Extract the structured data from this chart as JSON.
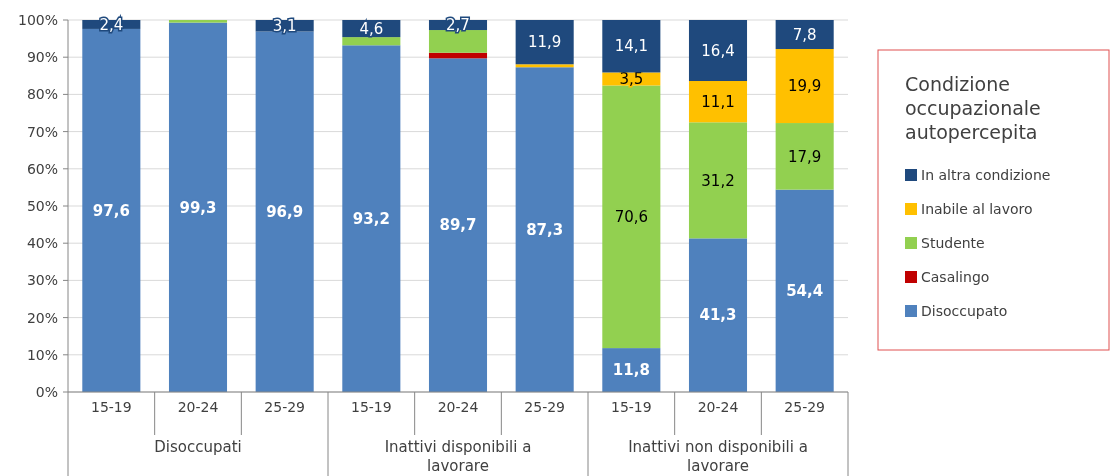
{
  "chart_data": {
    "type": "bar",
    "stacked": true,
    "legend": "right",
    "legend_title": "Condizione occupazionale autopercepita",
    "grid": "y",
    "categories": [
      "15-19",
      "20-24",
      "25-29",
      "15-19",
      "20-24",
      "25-29",
      "15-19",
      "20-24",
      "25-29"
    ],
    "annotations": [
      "Disoccupati",
      "Inattivi disponibili a lavorare",
      "Inattivi non disponibili a lavorare"
    ],
    "ylim": [
      0,
      100
    ],
    "yticks": [
      {
        "value": 0,
        "label": "0%"
      },
      {
        "value": 10,
        "label": "10%"
      },
      {
        "value": 20,
        "label": "20%"
      },
      {
        "value": 30,
        "label": "30%"
      },
      {
        "value": 40,
        "label": "40%"
      },
      {
        "value": 50,
        "label": "50%"
      },
      {
        "value": 60,
        "label": "60%"
      },
      {
        "value": 70,
        "label": "70%"
      },
      {
        "value": 80,
        "label": "80%"
      },
      {
        "value": 90,
        "label": "90%"
      },
      {
        "value": 100,
        "label": "100%"
      }
    ],
    "series": [
      {
        "name": "Disoccupato",
        "color": "#4f81bd",
        "values": [
          97.6,
          99.3,
          96.9,
          93.2,
          89.7,
          87.3,
          11.8,
          41.3,
          54.4
        ],
        "value_labels": [
          "97,6",
          "99,3",
          "96,9",
          "93,2",
          "89,7",
          "87,3",
          "11,8",
          "41,3",
          "54,4"
        ]
      },
      {
        "name": "Casalingo",
        "color": "#c00000",
        "values": [
          0,
          0,
          0,
          0,
          1.5,
          0,
          0,
          0,
          0
        ],
        "value_labels": [
          null,
          null,
          null,
          null,
          null,
          null,
          null,
          null,
          null
        ]
      },
      {
        "name": "Studente",
        "color": "#92d050",
        "values": [
          0,
          0.7,
          0,
          2.2,
          6.1,
          0,
          70.6,
          31.2,
          17.9
        ],
        "value_labels": [
          null,
          null,
          null,
          null,
          null,
          null,
          "70,6",
          "31,2",
          "17,9"
        ]
      },
      {
        "name": "Inabile al lavoro",
        "color": "#ffc000",
        "values": [
          0,
          0,
          0,
          0,
          0,
          0.8,
          3.5,
          11.1,
          19.9
        ],
        "value_labels": [
          null,
          null,
          null,
          null,
          null,
          null,
          "3,5",
          "11,1",
          "19,9"
        ]
      },
      {
        "name": "In altra condizione",
        "color": "#1f497d",
        "values": [
          2.4,
          0,
          3.1,
          4.6,
          2.7,
          11.9,
          14.1,
          16.4,
          7.8
        ],
        "value_labels": [
          "2,4",
          null,
          "3,1",
          "4,6",
          "2,7",
          "11,9",
          "14,1",
          "16,4",
          "7,8"
        ]
      }
    ]
  }
}
